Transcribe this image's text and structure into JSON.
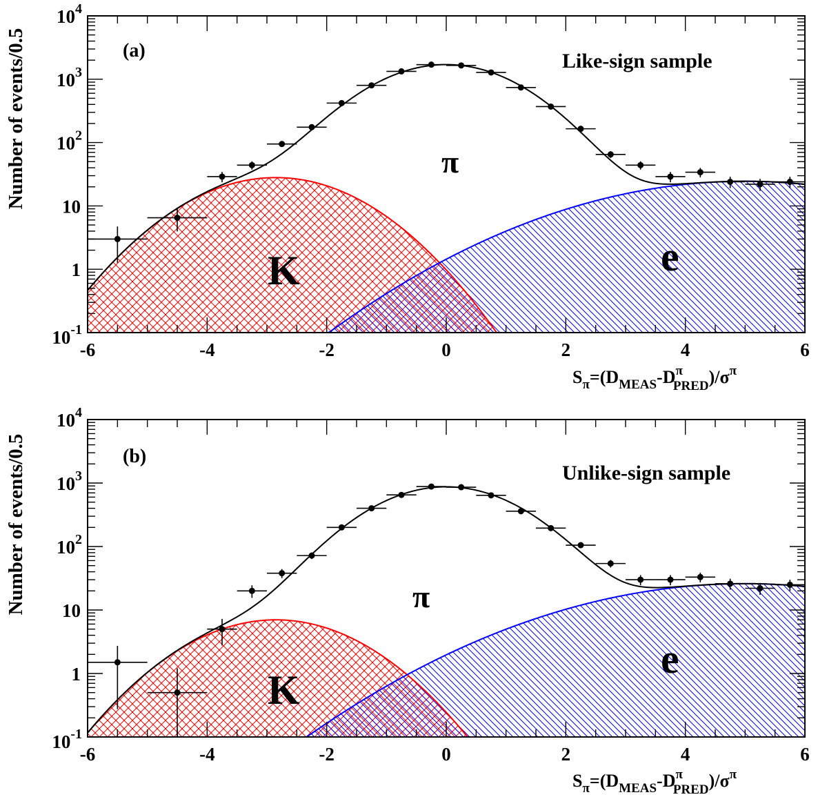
{
  "chart_data": [
    {
      "type": "scatter",
      "panel_label": "(a)",
      "sample_label": "Like-sign sample",
      "xlabel": {
        "main": "S",
        "sub": "π",
        "rest": "=(D",
        "meas": "MEAS",
        "dash": "-D",
        "pi_sup": "π",
        "pred": "PRED",
        "tail": ")/σ",
        "sigma_sup": "π"
      },
      "ylabel": "Number of events/0.5",
      "xlim": [
        -6,
        6
      ],
      "ylim": [
        0.1,
        10000
      ],
      "yscale": "log",
      "x_ticks": [
        "-6",
        "-4",
        "-2",
        "0",
        "2",
        "4",
        "6"
      ],
      "y_ticks": [
        {
          "base": "10",
          "exp": "-1",
          "value": 0.1
        },
        {
          "base": "1",
          "exp": "",
          "value": 1
        },
        {
          "base": "10",
          "exp": "",
          "value": 10
        },
        {
          "base": "10",
          "exp": "2",
          "value": 100
        },
        {
          "base": "10",
          "exp": "3",
          "value": 1000
        },
        {
          "base": "10",
          "exp": "4",
          "value": 10000
        }
      ],
      "region_labels": {
        "kaon": "K",
        "pion": "π",
        "electron": "e"
      },
      "data_points": {
        "x": [
          -5.5,
          -4.5,
          -3.75,
          -3.25,
          -2.75,
          -2.25,
          -1.75,
          -1.25,
          -0.75,
          -0.25,
          0.25,
          0.75,
          1.25,
          1.75,
          2.25,
          2.75,
          3.25,
          3.75,
          4.25,
          4.75,
          5.25,
          5.75
        ],
        "y": [
          3.0,
          6.5,
          29,
          44,
          95,
          175,
          420,
          800,
          1330,
          1700,
          1650,
          1280,
          740,
          370,
          165,
          65,
          44,
          29,
          34,
          24,
          22,
          24
        ],
        "xerr_half": [
          0.5,
          0.5,
          0.25,
          0.25,
          0.25,
          0.25,
          0.25,
          0.25,
          0.25,
          0.25,
          0.25,
          0.25,
          0.25,
          0.25,
          0.25,
          0.25,
          0.25,
          0.25,
          0.25,
          0.25,
          0.25,
          0.25
        ]
      },
      "components": {
        "pion": {
          "amplitude": 1700,
          "mean": 0.0,
          "sigma": 1.0
        },
        "kaon": {
          "amplitude": 28,
          "mean": -2.85,
          "sigma": 1.1
        },
        "electron": {
          "amplitude": 24.5,
          "mean": 5.0,
          "sigma": 2.1
        }
      },
      "colors": {
        "kaon": "#ff0000",
        "electron": "#0000ff",
        "total": "#000000"
      }
    },
    {
      "type": "scatter",
      "panel_label": "(b)",
      "sample_label": "Unlike-sign sample",
      "xlabel": {
        "main": "S",
        "sub": "π",
        "rest": "=(D",
        "meas": "MEAS",
        "dash": "-D",
        "pi_sup": "π",
        "pred": "PRED",
        "tail": ")/σ",
        "sigma_sup": "π"
      },
      "ylabel": "Number of events/0.5",
      "xlim": [
        -6,
        6
      ],
      "ylim": [
        0.1,
        10000
      ],
      "yscale": "log",
      "x_ticks": [
        "-6",
        "-4",
        "-2",
        "0",
        "2",
        "4",
        "6"
      ],
      "y_ticks": [
        {
          "base": "10",
          "exp": "-1",
          "value": 0.1
        },
        {
          "base": "1",
          "exp": "",
          "value": 1
        },
        {
          "base": "10",
          "exp": "",
          "value": 10
        },
        {
          "base": "10",
          "exp": "2",
          "value": 100
        },
        {
          "base": "10",
          "exp": "3",
          "value": 1000
        },
        {
          "base": "10",
          "exp": "4",
          "value": 10000
        }
      ],
      "region_labels": {
        "kaon": "K",
        "pion": "π",
        "electron": "e"
      },
      "data_points": {
        "x": [
          -5.5,
          -4.5,
          -3.75,
          -3.25,
          -2.75,
          -2.25,
          -1.75,
          -1.25,
          -0.75,
          -0.25,
          0.25,
          0.75,
          1.25,
          1.75,
          2.25,
          2.75,
          3.25,
          3.75,
          4.25,
          4.75,
          5.25,
          5.75
        ],
        "y": [
          1.5,
          0.5,
          5.0,
          20,
          38,
          72,
          200,
          400,
          650,
          880,
          860,
          640,
          360,
          195,
          105,
          54,
          30,
          30,
          33,
          26,
          22,
          25
        ],
        "xerr_half": [
          0.5,
          0.5,
          0.25,
          0.25,
          0.25,
          0.25,
          0.25,
          0.25,
          0.25,
          0.25,
          0.25,
          0.25,
          0.25,
          0.25,
          0.25,
          0.25,
          0.25,
          0.25,
          0.25,
          0.25,
          0.25,
          0.25
        ]
      },
      "components": {
        "pion": {
          "amplitude": 870,
          "mean": 0.0,
          "sigma": 1.0
        },
        "kaon": {
          "amplitude": 7.0,
          "mean": -2.85,
          "sigma": 1.1
        },
        "electron": {
          "amplitude": 26,
          "mean": 5.0,
          "sigma": 2.2
        }
      },
      "colors": {
        "kaon": "#ff0000",
        "electron": "#0000ff",
        "total": "#000000"
      }
    }
  ]
}
